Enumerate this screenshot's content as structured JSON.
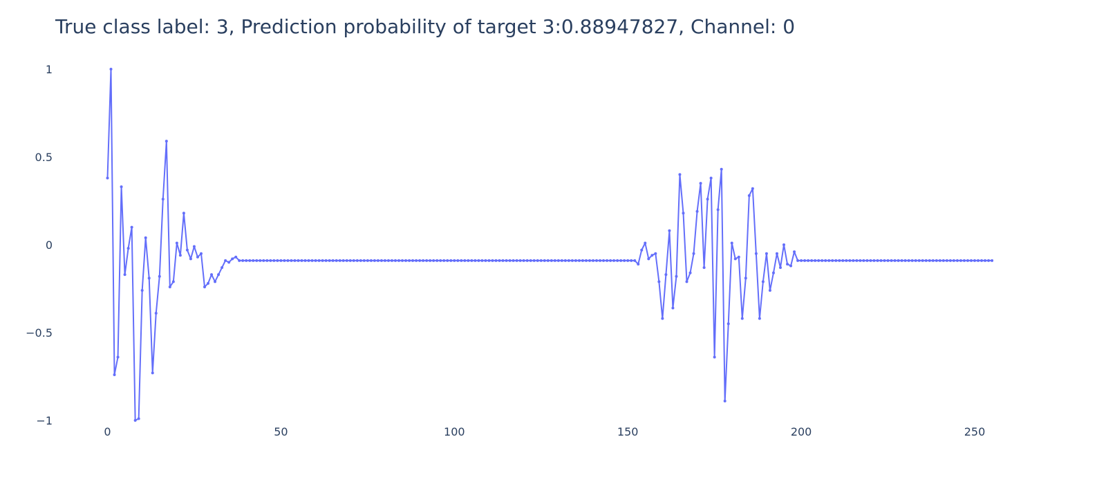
{
  "chart_data": {
    "type": "line",
    "title": "True class label: 3, Prediction probability of target 3:0.88947827, Channel: 0",
    "xlabel": "",
    "ylabel": "",
    "xlim": [
      -5,
      262
    ],
    "ylim": [
      -1,
      1
    ],
    "grid": false,
    "x_ticks": [
      0,
      50,
      100,
      150,
      200,
      250
    ],
    "y_ticks": [
      1,
      0.5,
      0,
      -0.5,
      -1
    ],
    "y_tick_labels": [
      "1",
      "0.5",
      "0",
      "−0.5",
      "−1"
    ],
    "line_color": "#636efa",
    "series": [
      {
        "mode": "lines+markers",
        "flat_value": -0.09,
        "x_start": 0,
        "x_end": 255,
        "values_segment_1": [
          0.38,
          1.0,
          -0.74,
          -0.64,
          0.33,
          -0.17,
          -0.02,
          0.1,
          -1.0,
          -0.99,
          -0.26,
          0.04,
          -0.19,
          -0.73,
          -0.39,
          -0.18,
          0.26,
          0.59,
          -0.24,
          -0.21,
          0.01,
          -0.06,
          0.18,
          -0.03,
          -0.08,
          -0.01,
          -0.07,
          -0.05,
          -0.24,
          -0.22,
          -0.17,
          -0.21,
          -0.17,
          -0.13,
          -0.09,
          -0.1,
          -0.08,
          -0.07,
          -0.09
        ],
        "values_segment_2_start": 152,
        "values_segment_2": [
          -0.09,
          -0.11,
          -0.03,
          0.01,
          -0.08,
          -0.06,
          -0.05,
          -0.21,
          -0.42,
          -0.17,
          0.08,
          -0.36,
          -0.18,
          0.4,
          0.18,
          -0.21,
          -0.16,
          -0.05,
          0.19,
          0.35,
          -0.13,
          0.26,
          0.38,
          -0.64,
          0.2,
          0.43,
          -0.89,
          -0.45,
          0.01,
          -0.08,
          -0.07,
          -0.42,
          -0.19,
          0.28,
          0.32,
          -0.05,
          -0.42,
          -0.21,
          -0.05,
          -0.26,
          -0.16,
          -0.05,
          -0.13,
          0.0,
          -0.11,
          -0.12,
          -0.04,
          -0.09
        ]
      }
    ]
  }
}
